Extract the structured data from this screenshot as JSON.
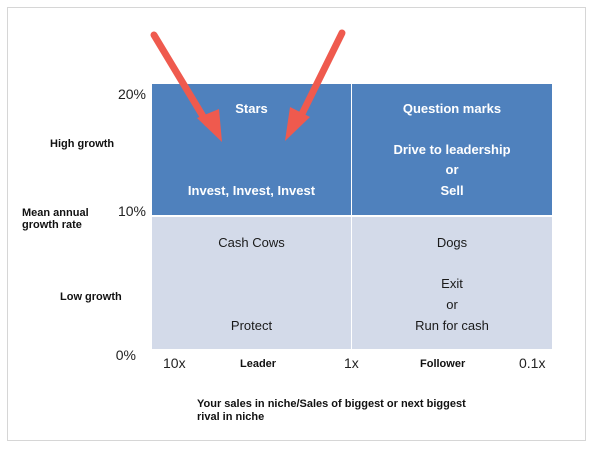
{
  "matrix": {
    "y_ticks": [
      "20%",
      "10%",
      "0%"
    ],
    "y_labels": {
      "high": "High growth",
      "axis_line1": "Mean annual",
      "axis_line2": "growth rate",
      "low": "Low growth"
    },
    "x_ticks": [
      "10x",
      "1x",
      "0.1x"
    ],
    "x_labels": {
      "left": "Leader",
      "right": "Follower"
    },
    "x_title_line1": "Your sales in niche/Sales of biggest or next biggest",
    "x_title_line2": "rival in niche",
    "quadrants": {
      "stars": {
        "title": "Stars",
        "action": "Invest, Invest, Invest"
      },
      "question_marks": {
        "title": "Question marks",
        "line1": "Drive to leadership",
        "line2": "or",
        "line3": "Sell"
      },
      "cash_cows": {
        "title": "Cash Cows",
        "action": "Protect"
      },
      "dogs": {
        "title": "Dogs",
        "line1": "Exit",
        "line2": "or",
        "line3": "Run for cash"
      }
    },
    "colors": {
      "top_quadrants": "#4f81bd",
      "bottom_quadrants": "#d3dae9",
      "arrows": "#ef5a4e"
    }
  }
}
